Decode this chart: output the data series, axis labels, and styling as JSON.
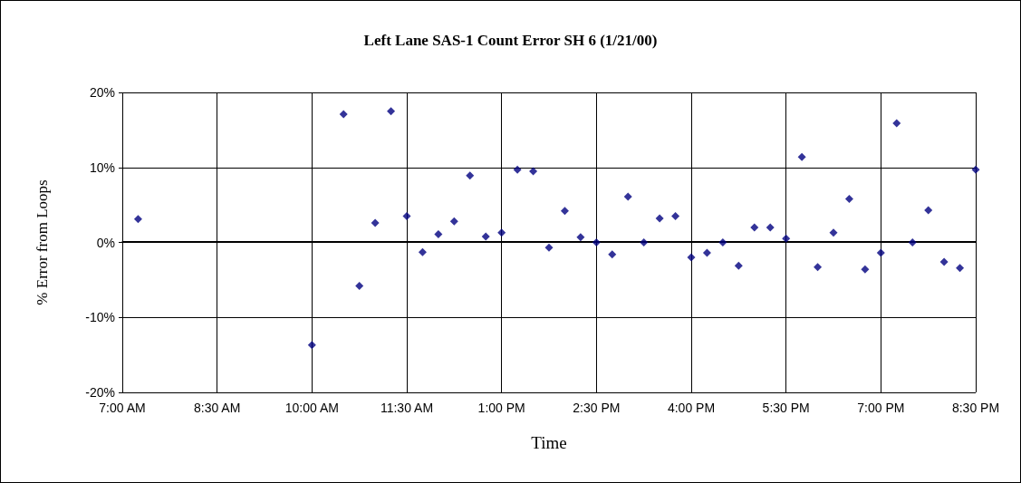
{
  "chart_data": {
    "type": "scatter",
    "title": "Left Lane SAS-1 Count Error SH 6 (1/21/00)",
    "xlabel": "Time",
    "ylabel": "% Error from Loops",
    "x": [
      7.25,
      10,
      10.5,
      10.75,
      11,
      11.25,
      11.5,
      11.75,
      12,
      12.25,
      12.5,
      12.75,
      13,
      13.25,
      13.5,
      13.75,
      14,
      14.25,
      14.5,
      14.75,
      15,
      15.25,
      15.5,
      15.75,
      16,
      16.25,
      16.5,
      16.75,
      17,
      17.25,
      17.5,
      17.75,
      18,
      18.25,
      18.5,
      18.75,
      19,
      19.25,
      19.5,
      19.75,
      20,
      20.25,
      20.5
    ],
    "series": [
      {
        "color": "#000080",
        "values": [
          3.1,
          -13.7,
          17.1,
          -5.8,
          2.6,
          17.5,
          3.5,
          -1.3,
          1.1,
          2.8,
          8.9,
          0.8,
          1.3,
          9.7,
          9.5,
          -0.7,
          4.2,
          0.7,
          0,
          -1.6,
          6.1,
          0,
          3.2,
          3.5,
          -2.0,
          -1.4,
          0,
          -3.1,
          2.0,
          2.0,
          0.5,
          11.4,
          -3.3,
          1.3,
          5.8,
          -3.6,
          -1.4,
          15.9,
          0,
          4.3,
          -2.6,
          -3.4,
          9.7
        ]
      }
    ],
    "xlim": [
      7,
      20.5
    ],
    "xticks": [
      {
        "value": 7,
        "label": "7:00 AM"
      },
      {
        "value": 8.5,
        "label": "8:30 AM"
      },
      {
        "value": 10,
        "label": "10:00 AM"
      },
      {
        "value": 11.5,
        "label": "11:30 AM"
      },
      {
        "value": 13,
        "label": "1:00 PM"
      },
      {
        "value": 14.5,
        "label": "2:30 PM"
      },
      {
        "value": 16,
        "label": "4:00 PM"
      },
      {
        "value": 17.5,
        "label": "5:30 PM"
      },
      {
        "value": 19,
        "label": "7:00 PM"
      },
      {
        "value": 20.5,
        "label": "8:30 PM"
      }
    ],
    "ylim": [
      -20,
      20
    ],
    "yticks": [
      {
        "value": -20,
        "label": "-20%"
      },
      {
        "value": -10,
        "label": "-10%"
      },
      {
        "value": 0,
        "label": "0%"
      },
      {
        "value": 10,
        "label": "10%"
      },
      {
        "value": 20,
        "label": "20%"
      }
    ],
    "grid": true,
    "marker": "diamond"
  }
}
